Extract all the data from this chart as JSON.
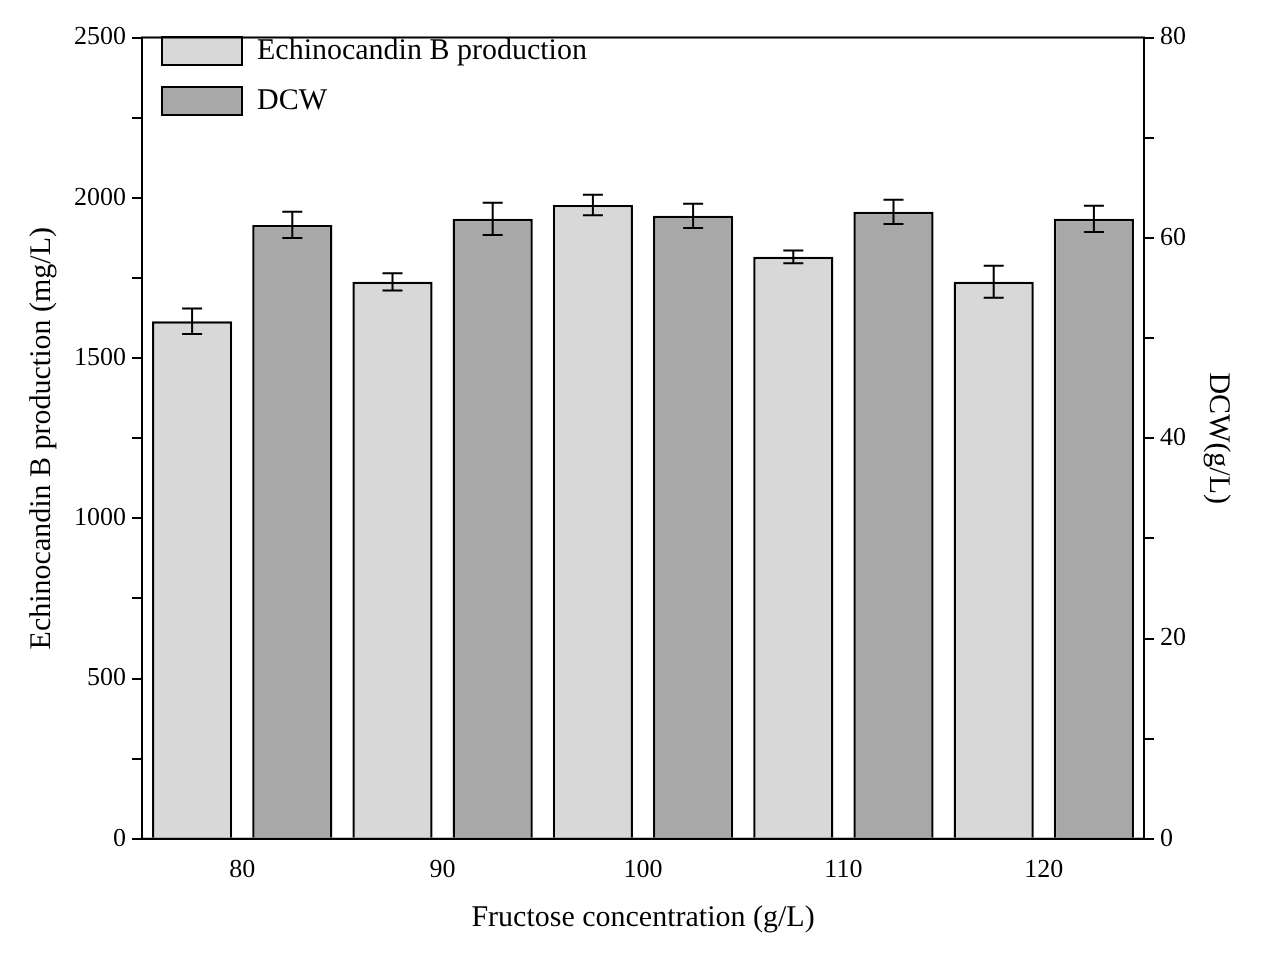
{
  "chart_data": {
    "type": "bar",
    "xlabel": "Fructose concentration (g/L)",
    "ylabel": "Echinocandin B production (mg/L)",
    "y2label": "DCW(g/L)",
    "categories": [
      "80",
      "90",
      "100",
      "110",
      "120"
    ],
    "series": [
      {
        "name": "Echinocandin B production",
        "color": "#d8d8d8",
        "values": [
          1615,
          1738,
          1978,
          1816,
          1738
        ],
        "errors": [
          40,
          27,
          32,
          20,
          50
        ]
      },
      {
        "name": "DCW",
        "color": "#a8a8a8",
        "axis": "y2",
        "values": [
          61.3,
          61.9,
          62.2,
          62.6,
          61.9
        ],
        "errors": [
          1.3,
          1.6,
          1.2,
          1.2,
          1.3
        ]
      }
    ],
    "ylim": [
      0,
      2500
    ],
    "yticks": [
      0,
      {
        "value": 250,
        "label": null
      },
      500,
      {
        "value": 750,
        "label": null
      },
      1000,
      {
        "value": 1250,
        "label": null
      },
      1500,
      {
        "value": 1750,
        "label": null
      },
      2000,
      {
        "value": 2250,
        "label": null
      },
      2500
    ],
    "y2lim": [
      0,
      80
    ],
    "y2ticks": [
      0,
      {
        "value": 10,
        "label": null
      },
      20,
      {
        "value": 30,
        "label": null
      },
      40,
      {
        "value": 50,
        "label": null
      },
      60,
      {
        "value": 70,
        "label": null
      },
      80
    ],
    "grid": false,
    "legend": "top left"
  }
}
